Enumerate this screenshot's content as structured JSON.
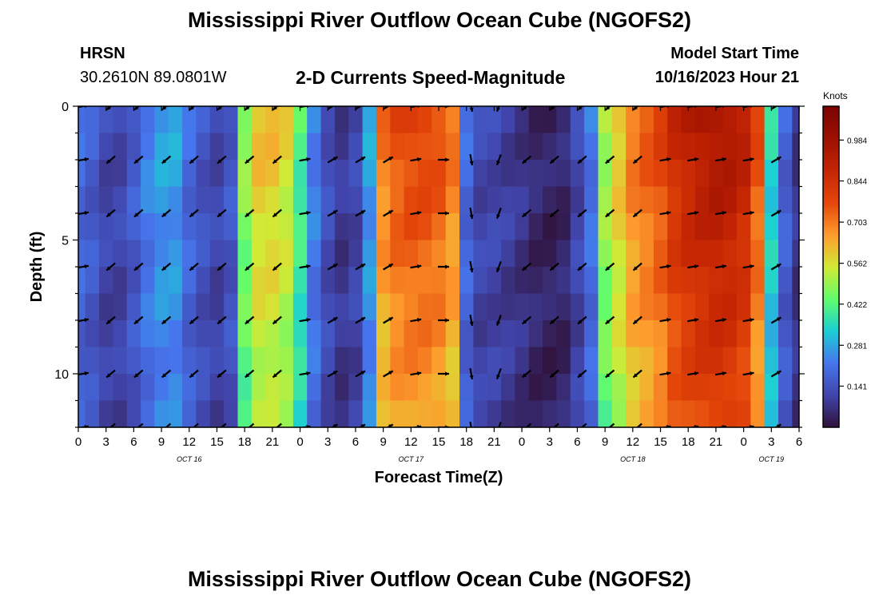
{
  "page": {
    "title": "Mississippi River Outflow Ocean Cube (NGOFS2)",
    "station_id": "HRSN",
    "station_coords": "30.2610N  89.0801W",
    "subtitle": "2-D Currents Speed-Magnitude",
    "model_start_label": "Model Start Time",
    "model_start_value": "10/16/2023 Hour 21",
    "footer_title": "Mississippi River Outflow Ocean Cube (NGOFS2)"
  },
  "chart_data": {
    "type": "heatmap",
    "title": "2-D Currents Speed-Magnitude",
    "xlabel": "Forecast Time(Z)",
    "ylabel": "Depth (ft)",
    "x_tick_labels": [
      "0",
      "3",
      "6",
      "9",
      "12",
      "15",
      "18",
      "21",
      "0",
      "3",
      "6",
      "9",
      "12",
      "15",
      "18",
      "21",
      "0",
      "3",
      "6",
      "9",
      "12",
      "15",
      "18",
      "21",
      "0",
      "3",
      "6"
    ],
    "day_labels": [
      {
        "label": "OCT 16",
        "hour": 12
      },
      {
        "label": "OCT 17",
        "hour": 36
      },
      {
        "label": "OCT 18",
        "hour": 60
      },
      {
        "label": "OCT 19",
        "hour": 75
      }
    ],
    "x_range_hours": [
      0,
      78
    ],
    "y_range_ft": [
      0,
      12
    ],
    "y_ticks": [
      0,
      5,
      10
    ],
    "y_tick_labels": [
      "0",
      "5",
      "10"
    ],
    "colorbar": {
      "unit": "Knots",
      "min": 0.0,
      "max": 1.1,
      "tick_values": [
        0.984,
        0.844,
        0.703,
        0.562,
        0.422,
        0.281,
        0.141
      ],
      "tick_labels": [
        "0.984",
        "0.844",
        "0.703",
        "0.562",
        "0.422",
        "0.281",
        "0.141"
      ]
    },
    "time_hours": [
      0,
      1.5,
      3,
      4.5,
      6,
      7.5,
      9,
      10.5,
      12,
      13.5,
      15,
      16.5,
      18,
      19.5,
      21,
      22.5,
      24,
      25.5,
      27,
      28.5,
      30,
      31.5,
      33,
      34.5,
      36,
      37.5,
      39,
      40.5,
      42,
      43.5,
      45,
      46.5,
      48,
      49.5,
      51,
      52.5,
      54,
      55.5,
      57,
      58.5,
      60,
      61.5,
      63,
      64.5,
      66,
      67.5,
      69,
      70.5,
      72,
      73.5,
      75,
      76.5,
      78
    ],
    "depth_ft": [
      0.5,
      1.5,
      2.5,
      3.5,
      4.5,
      5.5,
      6.5,
      7.5,
      8.5,
      9.5,
      10.5,
      11.5
    ],
    "speed_profile_knots": [
      0.2,
      0.17,
      0.12,
      0.12,
      0.17,
      0.24,
      0.28,
      0.28,
      0.2,
      0.15,
      0.12,
      0.16,
      0.5,
      0.62,
      0.62,
      0.58,
      0.42,
      0.24,
      0.14,
      0.09,
      0.12,
      0.28,
      0.72,
      0.78,
      0.8,
      0.8,
      0.78,
      0.72,
      0.2,
      0.12,
      0.12,
      0.1,
      0.08,
      0.05,
      0.04,
      0.05,
      0.12,
      0.22,
      0.52,
      0.62,
      0.72,
      0.76,
      0.8,
      0.88,
      0.92,
      0.95,
      0.97,
      0.96,
      0.92,
      0.78,
      0.36,
      0.18,
      0.08
    ],
    "arrows": {
      "hours": [
        0,
        3,
        6,
        9,
        12,
        15,
        18,
        21,
        24,
        27,
        30,
        33,
        36,
        39,
        42,
        45,
        48,
        51,
        54,
        57,
        60,
        63,
        66,
        69,
        72,
        75,
        78
      ],
      "depths_ft": [
        0,
        2,
        4,
        6,
        8,
        10,
        12
      ],
      "direction_deg": [
        80,
        230,
        230,
        230,
        230,
        230,
        230,
        230,
        80,
        60,
        60,
        60,
        80,
        90,
        170,
        200,
        230,
        230,
        230,
        230,
        230,
        80,
        80,
        80,
        80,
        60,
        250
      ]
    }
  }
}
